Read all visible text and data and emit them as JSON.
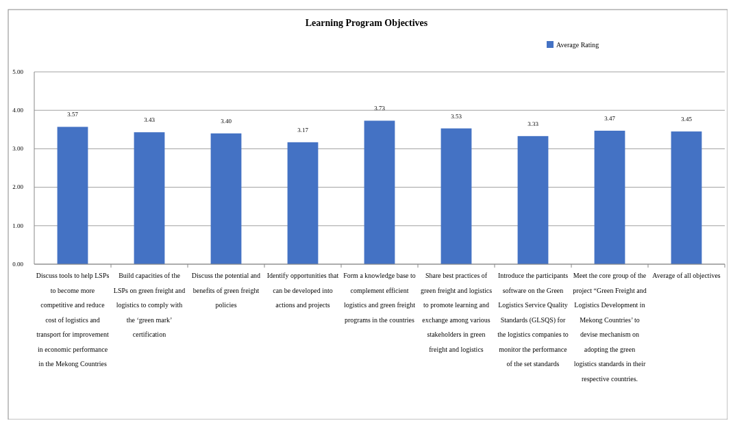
{
  "chart_data": {
    "type": "bar",
    "title": "Learning Program Objectives",
    "categories": [
      "Discuss tools to help LSPs to become more competitive and reduce cost of logistics and transport for improvement in economic performance in the Mekong Countries",
      "Build capacities of the LSPs on green freight and logistics to comply with the ‘green mark’ certification",
      "Discuss the potential and benefits of green freight policies",
      "Identify opportunities that can be developed into actions and projects",
      "Form a knowledge base to complement efficient logistics and green freight programs in the countries",
      "Share best practices of green freight and logistics to promote learning and exchange among various stakeholders in green freight and logistics",
      "Introduce the participants software on the Green Logistics Service Quality Standards (GLSQS) for the logistics companies to monitor the performance of the set standards",
      "Meet the core group of the project “Green Freight and Logistics Development in Mekong Countries’ to devise mechanism on adopting the green logistics standards in their respective countries.",
      "Average of all objectives"
    ],
    "series": [
      {
        "name": "Average Rating",
        "color": "#4472c4",
        "values": [
          3.57,
          3.43,
          3.4,
          3.17,
          3.73,
          3.53,
          3.33,
          3.47,
          3.45
        ],
        "value_labels": [
          "3.57",
          "3.43",
          "3.40",
          "3.17",
          "3.73",
          "3.53",
          "3.33",
          "3.47",
          "3.45"
        ]
      }
    ],
    "ylim": [
      0,
      5
    ],
    "yticks": [
      {
        "value": 0,
        "label": "0.00"
      },
      {
        "value": 1,
        "label": "1.00"
      },
      {
        "value": 2,
        "label": "2.00"
      },
      {
        "value": 3,
        "label": "3.00"
      },
      {
        "value": 4,
        "label": "4.00"
      },
      {
        "value": 5,
        "label": "5.00"
      }
    ],
    "grid": "y",
    "legend": "top right"
  }
}
